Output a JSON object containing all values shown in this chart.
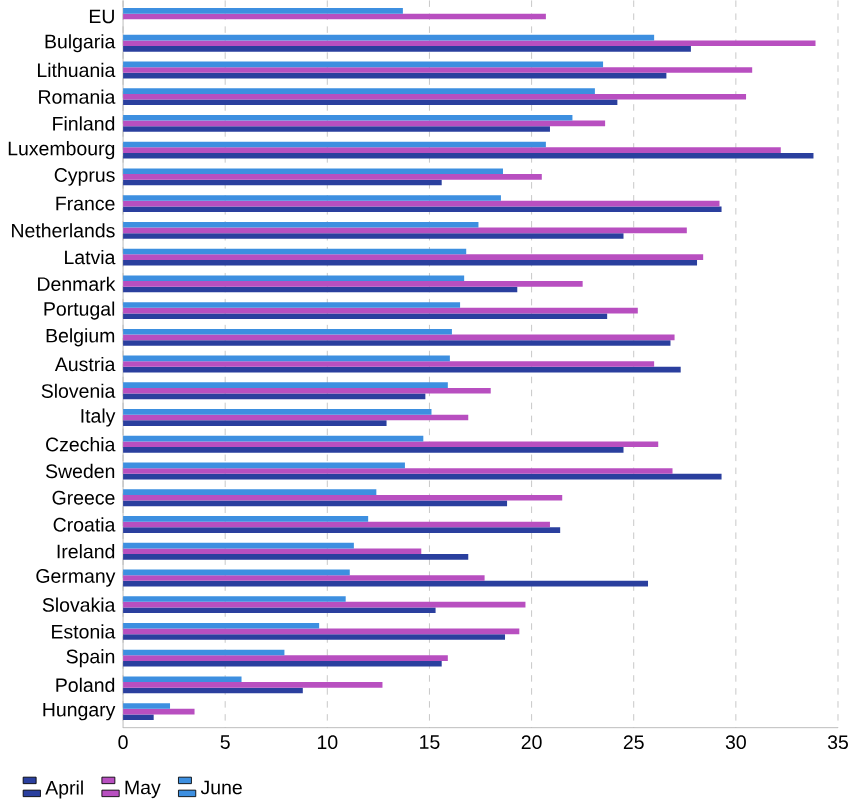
{
  "chart_data": {
    "type": "bar",
    "orientation": "horizontal",
    "categories": [
      "EU",
      "Bulgaria",
      "Lithuania",
      "Romania",
      "Finland",
      "Luxembourg",
      "Cyprus",
      "France",
      "Netherlands",
      "Latvia",
      "Denmark",
      "Portugal",
      "Belgium",
      "Austria",
      "Slovenia",
      "Italy",
      "Czechia",
      "Sweden",
      "Greece",
      "Croatia",
      "Ireland",
      "Germany",
      "Slovakia",
      "Estonia",
      "Spain",
      "Poland",
      "Hungary"
    ],
    "series": [
      {
        "name": "April",
        "color": "#2a3f9e",
        "values": [
          null,
          27.8,
          26.6,
          24.2,
          20.9,
          33.8,
          15.6,
          29.3,
          24.5,
          28.1,
          19.3,
          23.7,
          26.8,
          27.3,
          14.8,
          12.9,
          24.5,
          29.3,
          18.8,
          21.4,
          16.9,
          25.7,
          15.3,
          18.7,
          15.6,
          8.8,
          1.5
        ]
      },
      {
        "name": "May",
        "color": "#b84fc0",
        "values": [
          20.7,
          33.9,
          30.8,
          30.5,
          23.6,
          32.2,
          20.5,
          29.2,
          27.6,
          28.4,
          22.5,
          25.2,
          27.0,
          26.0,
          18.0,
          16.9,
          26.2,
          26.9,
          21.5,
          20.9,
          14.6,
          17.7,
          19.7,
          19.4,
          15.9,
          12.7,
          3.5
        ]
      },
      {
        "name": "June",
        "color": "#3d8fe0",
        "values": [
          13.7,
          26.0,
          23.5,
          23.1,
          22.0,
          20.7,
          18.6,
          18.5,
          17.4,
          16.8,
          16.7,
          16.5,
          16.1,
          16.0,
          15.9,
          15.1,
          14.7,
          13.8,
          12.4,
          12.0,
          11.3,
          11.1,
          10.9,
          9.6,
          7.9,
          5.8,
          2.3
        ]
      }
    ],
    "xlim": [
      0,
      35
    ],
    "xticks": [
      0,
      5,
      10,
      15,
      20,
      25,
      30,
      35
    ],
    "grid": "x",
    "legend": "bottom left"
  }
}
